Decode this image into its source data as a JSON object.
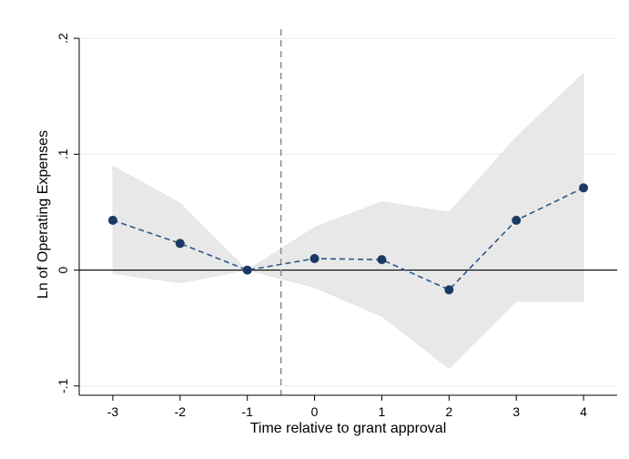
{
  "chart_data": {
    "type": "line",
    "title": "",
    "xlabel": "Time relative to grant approval",
    "ylabel": "Ln of Operating Expenses",
    "x": [
      -3,
      -2,
      -1,
      0,
      1,
      2,
      3,
      4
    ],
    "xticks": [
      "-3",
      "-2",
      "-1",
      "0",
      "1",
      "2",
      "3",
      "4"
    ],
    "yticks": [
      {
        "value": -0.1,
        "label": "-.1"
      },
      {
        "value": 0,
        "label": "0"
      },
      {
        "value": 0.1,
        "label": ".1"
      },
      {
        "value": 0.2,
        "label": ".2"
      }
    ],
    "xlim": [
      -3.5,
      4.5
    ],
    "ylim": [
      -0.108,
      0.204
    ],
    "series": [
      {
        "kind": "point-estimate",
        "values": [
          0.043,
          0.023,
          0.0,
          0.01,
          0.009,
          -0.017,
          0.043,
          0.071
        ],
        "line_style": "dashed",
        "marker": "circle",
        "color": "#1a3a63"
      }
    ],
    "confidence_band": {
      "lower": [
        -0.003,
        -0.011,
        0.0,
        -0.015,
        -0.04,
        -0.085,
        -0.027,
        -0.027
      ],
      "upper": [
        0.09,
        0.058,
        0.0,
        0.037,
        0.059,
        0.05,
        0.115,
        0.17
      ],
      "color": "#e8e8e8"
    },
    "reference_lines": {
      "horizontal_y": 0,
      "vertical_x": -0.5,
      "vertical_style": "dashed"
    },
    "grid": "horizontal",
    "legend": "none"
  }
}
